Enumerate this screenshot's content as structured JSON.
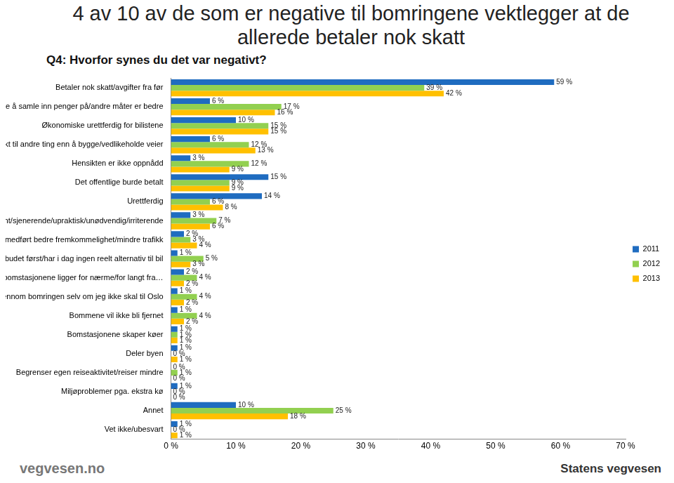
{
  "chart_data": {
    "type": "bar",
    "orientation": "horizontal",
    "title": "4 av 10 av de som er negative til bomringene vektlegger at de allerede betaler nok skatt",
    "subtitle": "Q4: Hvorfor synes du det var negativt?",
    "footer": [
      "vegvesen.no",
      "Statens vegvesen"
    ],
    "categories": [
      "Betaler nok skatt/avgifter fra før",
      "Dyr måte å samle inn penger på/andre måter er bedre",
      "Økonomiske urettferdig for bilistene",
      "Pengene blir brukt til andre ting enn å bygge/vedlikeholde veier",
      "Hensikten er ikke oppnådd",
      "Det offentlige burde betalt",
      "Urettferdig",
      "Tåpelig/slitsomt/sjenerende/upraktisk/unødvendig/irriterende",
      "Har ikke medført bedre fremkommelighet/mindre trafikk",
      "Forbedre kollektivtilbudet først/har i dag ingen reelt alternativ til bil",
      "Geografisk beliggenhet (bomstasjonene ligger for nærme/for langt fra…",
      "Må gjennom bomringen selv om jeg ikke skal til Oslo",
      "Bommene vil ikke bli fjernet",
      "Bomstasjonene skaper køer",
      "Deler byen",
      "Begrenser egen reiseaktivitet/reiser mindre",
      "Miljøproblemer pga. ekstra kø",
      "Annet",
      "Vet ikke/ubesvart"
    ],
    "series": [
      {
        "name": "2011",
        "color": "#1f6cc0",
        "values": [
          59,
          6,
          10,
          6,
          3,
          15,
          14,
          3,
          2,
          1,
          2,
          1,
          1,
          1,
          1,
          0,
          1,
          10,
          1
        ],
        "value_labels": [
          "59 %",
          "6 %",
          "10 %",
          "6 %",
          "3 %",
          "15 %",
          "14 %",
          "3 %",
          "2 %",
          "1 %",
          "2 %",
          "1 %",
          "1 %",
          "1 %",
          "1 %",
          "0 %",
          "1 %",
          "10 %",
          "1 %"
        ]
      },
      {
        "name": "2012",
        "color": "#92d050",
        "values": [
          39,
          17,
          15,
          12,
          12,
          9,
          6,
          7,
          3,
          5,
          4,
          4,
          4,
          1,
          0,
          1,
          0,
          25,
          0
        ],
        "value_labels": [
          "39 %",
          "17 %",
          "15 %",
          "12 %",
          "12 %",
          "9 %",
          "6 %",
          "7 %",
          "3 %",
          "5 %",
          "4 %",
          "4 %",
          "4 %",
          "1 %",
          "0 %",
          "1 %",
          "0 %",
          "25 %",
          "0 %"
        ]
      },
      {
        "name": "2013",
        "color": "#ffc000",
        "values": [
          42,
          16,
          15,
          13,
          9,
          9,
          8,
          6,
          4,
          3,
          2,
          2,
          2,
          1,
          1,
          0,
          0,
          18,
          1
        ],
        "value_labels": [
          "42 %",
          "16 %",
          "15 %",
          "13 %",
          "9 %",
          "9 %",
          "8 %",
          "6 %",
          "4 %",
          "3 %",
          "2 %",
          "2 %",
          "2 %",
          "1 %",
          "1 %",
          "0 %",
          "0 %",
          "18 %",
          "1 %"
        ]
      }
    ],
    "xlim": [
      0,
      70
    ],
    "xticks": [
      {
        "value": 0,
        "label": "0 %"
      },
      {
        "value": 10,
        "label": "10 %"
      },
      {
        "value": 20,
        "label": "20 %"
      },
      {
        "value": 30,
        "label": "30 %"
      },
      {
        "value": 40,
        "label": "40 %"
      },
      {
        "value": 50,
        "label": "50 %"
      },
      {
        "value": 60,
        "label": "60 %"
      },
      {
        "value": 70,
        "label": "70 %"
      }
    ],
    "grid": false,
    "legend": "right",
    "data_labels": true
  }
}
